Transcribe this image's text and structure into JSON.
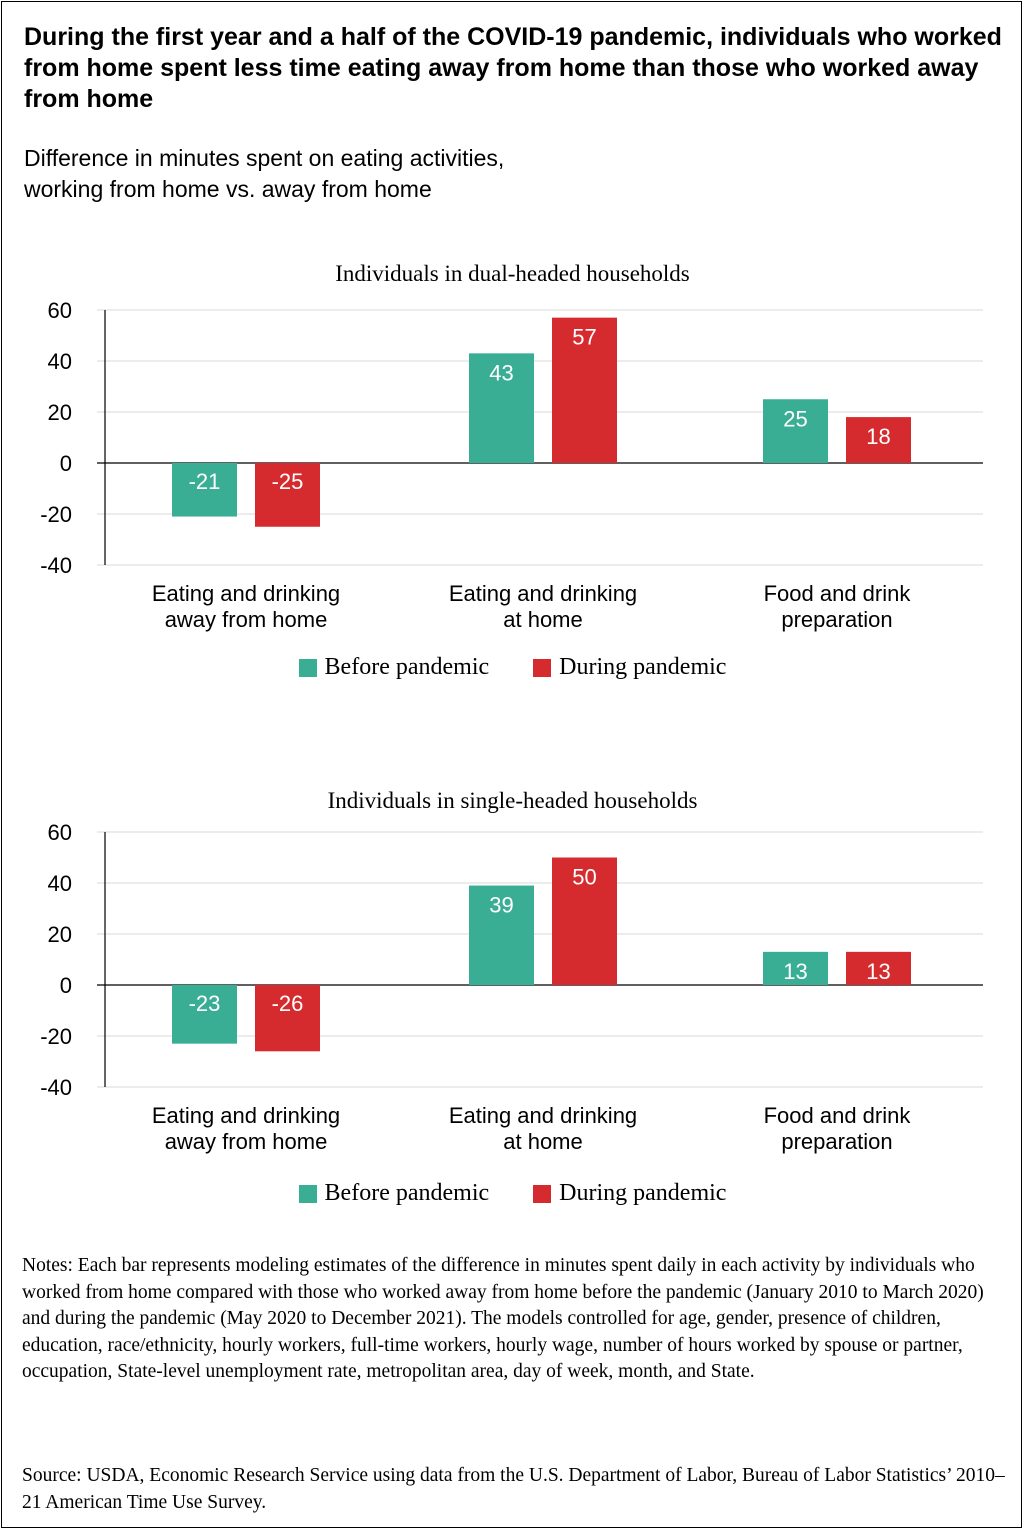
{
  "title": "During the first year and a half of the COVID-19 pandemic, individuals who worked from home spent less time eating away from home than those who worked away from home",
  "subtitle": "Difference in minutes spent on eating activities,\nworking from home vs. away from home",
  "colors": {
    "before": "#3aae95",
    "during": "#d62b2e",
    "grid": "#d9d9d9",
    "axis": "#000000"
  },
  "legend": {
    "before": "Before pandemic",
    "during": "During pandemic"
  },
  "chart_data": [
    {
      "type": "bar",
      "title": "Individuals in dual-headed households",
      "categories": [
        [
          "Eating and drinking",
          "away from home"
        ],
        [
          "Eating and drinking",
          "at home"
        ],
        [
          "Food and drink",
          "preparation"
        ]
      ],
      "series": [
        {
          "name": "Before pandemic",
          "values": [
            -21,
            43,
            25
          ]
        },
        {
          "name": "During pandemic",
          "values": [
            -25,
            57,
            18
          ]
        }
      ],
      "yticks": [
        "60",
        "40",
        "20",
        "0",
        "-20",
        "-40"
      ],
      "ylim": [
        -40,
        60
      ],
      "grid": true,
      "legend": "bottom"
    },
    {
      "type": "bar",
      "title": "Individuals in single-headed households",
      "categories": [
        [
          "Eating and drinking",
          "away from home"
        ],
        [
          "Eating and drinking",
          "at home"
        ],
        [
          "Food and drink",
          "preparation"
        ]
      ],
      "series": [
        {
          "name": "Before pandemic",
          "values": [
            -23,
            39,
            13
          ]
        },
        {
          "name": "During pandemic",
          "values": [
            -26,
            50,
            13
          ]
        }
      ],
      "yticks": [
        "60",
        "40",
        "20",
        "0",
        "-20",
        "-40"
      ],
      "ylim": [
        -40,
        60
      ],
      "grid": true,
      "legend": "bottom"
    }
  ],
  "notes": "Notes: Each bar represents modeling estimates of the difference in minutes spent daily in each activity by individuals who worked from home compared with those who worked away from home before the pandemic (January 2010 to March 2020) and during the pandemic (May 2020 to December 2021). The models controlled for age, gender, presence of children, education, race/ethnicity, hourly workers, full-time workers, hourly wage, number of hours worked by spouse or partner, occupation, State-level unemployment rate, metropolitan area, day of week, month, and State.",
  "source": "Source: USDA, Economic Research Service using data from the U.S. Department of Labor, Bureau of Labor Statistics’ 2010–21 American Time Use Survey."
}
